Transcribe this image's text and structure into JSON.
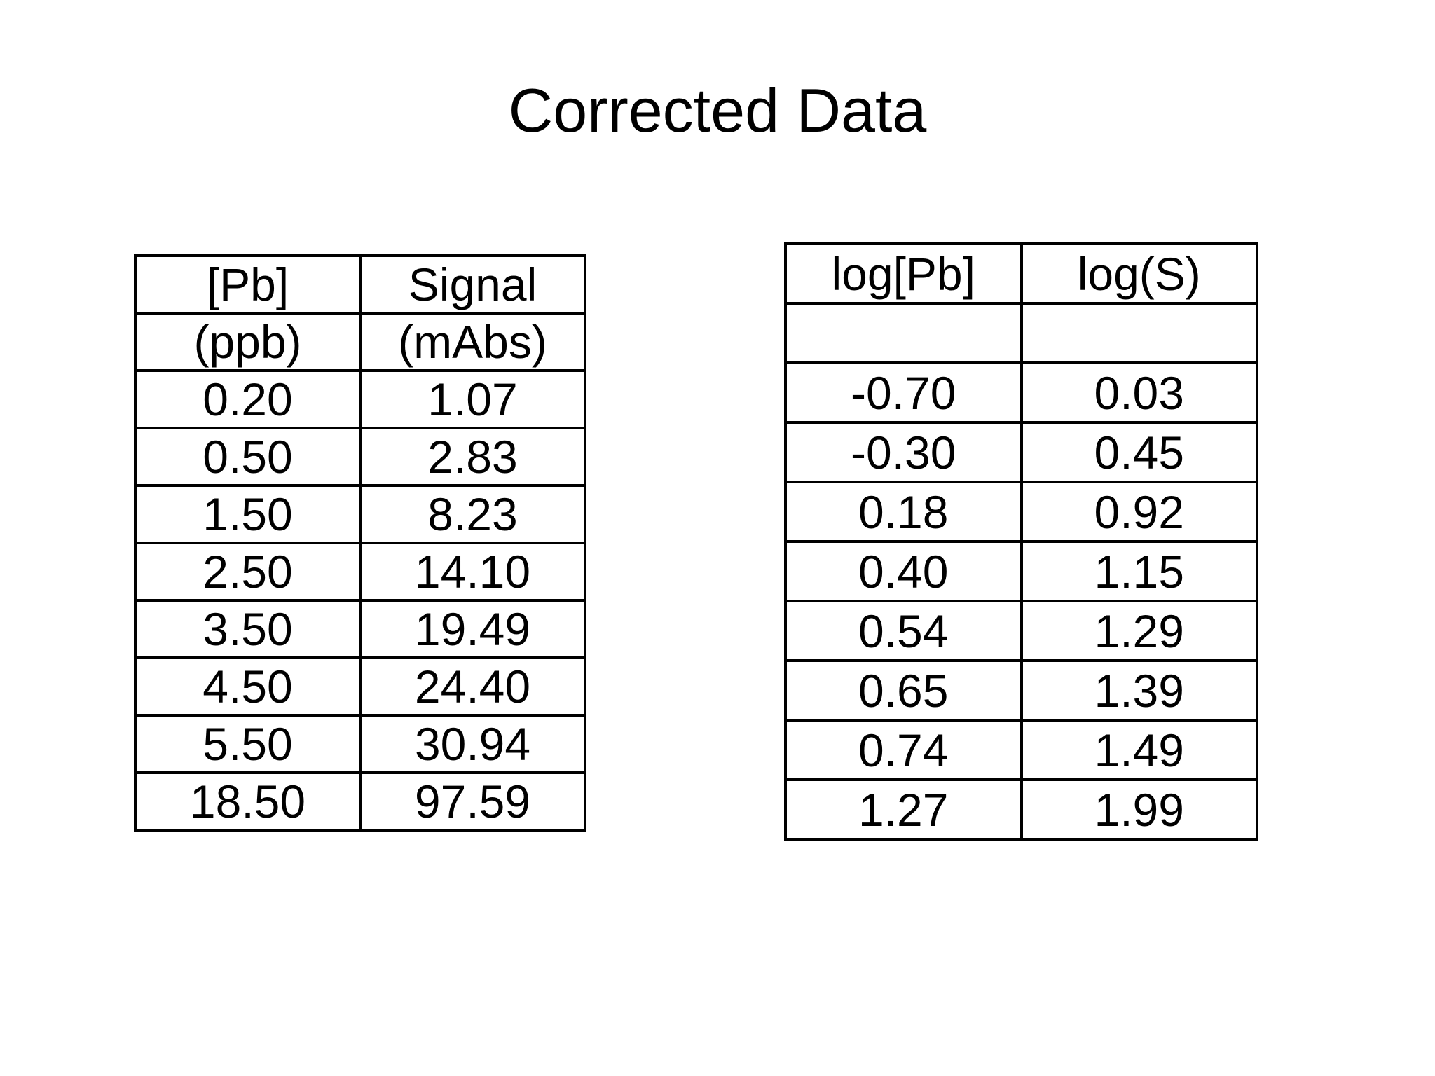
{
  "title": "Corrected Data",
  "left_table": {
    "header": [
      [
        "[Pb]",
        "Signal"
      ],
      [
        "(ppb)",
        "(mAbs)"
      ]
    ],
    "rows": [
      [
        "0.20",
        "1.07"
      ],
      [
        "0.50",
        "2.83"
      ],
      [
        "1.50",
        "8.23"
      ],
      [
        "2.50",
        "14.10"
      ],
      [
        "3.50",
        "19.49"
      ],
      [
        "4.50",
        "24.40"
      ],
      [
        "5.50",
        "30.94"
      ],
      [
        "18.50",
        "97.59"
      ]
    ]
  },
  "right_table": {
    "header": [
      [
        "log[Pb]",
        "log(S)"
      ],
      [
        "",
        ""
      ]
    ],
    "rows": [
      [
        "-0.70",
        "0.03"
      ],
      [
        "-0.30",
        "0.45"
      ],
      [
        "0.18",
        "0.92"
      ],
      [
        "0.40",
        "1.15"
      ],
      [
        "0.54",
        "1.29"
      ],
      [
        "0.65",
        "1.39"
      ],
      [
        "0.74",
        "1.49"
      ],
      [
        "1.27",
        "1.99"
      ]
    ]
  }
}
